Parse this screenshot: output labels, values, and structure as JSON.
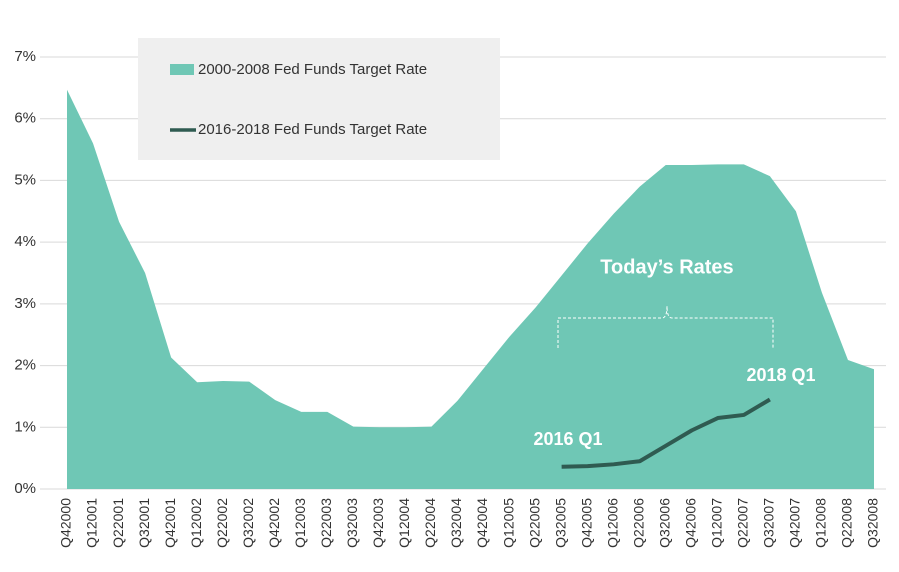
{
  "chart_data": {
    "type": "area_line",
    "categories": [
      "Q42000",
      "Q12001",
      "Q22001",
      "Q32001",
      "Q42001",
      "Q12002",
      "Q22002",
      "Q32002",
      "Q42002",
      "Q12003",
      "Q22003",
      "Q32003",
      "Q42003",
      "Q12004",
      "Q22004",
      "Q32004",
      "Q42004",
      "Q12005",
      "Q22005",
      "Q32005",
      "Q42005",
      "Q12006",
      "Q22006",
      "Q32006",
      "Q42006",
      "Q12007",
      "Q22007",
      "Q32007",
      "Q42007",
      "Q12008",
      "Q22008",
      "Q32008"
    ],
    "series": [
      {
        "name": "2000-2008 Fed Funds Target Rate",
        "color": "#6fc7b5",
        "kind": "area",
        "values": [
          6.47,
          5.6,
          4.33,
          3.5,
          2.13,
          1.73,
          1.75,
          1.74,
          1.44,
          1.25,
          1.25,
          1.01,
          1.0,
          1.0,
          1.01,
          1.43,
          1.95,
          2.47,
          2.94,
          3.46,
          3.98,
          4.46,
          4.9,
          5.25,
          5.25,
          5.26,
          5.26,
          5.07,
          4.5,
          3.18,
          2.09,
          1.94
        ]
      },
      {
        "name": "2016-2018 Fed Funds Target Rate",
        "color": "#2f5b51",
        "kind": "line",
        "values": [
          null,
          null,
          null,
          null,
          null,
          null,
          null,
          null,
          null,
          null,
          null,
          null,
          null,
          null,
          null,
          null,
          null,
          null,
          null,
          0.36,
          0.37,
          0.4,
          0.45,
          0.7,
          0.95,
          1.15,
          1.2,
          1.45,
          null,
          null,
          null,
          null
        ]
      }
    ],
    "ylim": [
      0,
      7
    ],
    "yticks": [
      {
        "value": 0,
        "label": "0%"
      },
      {
        "value": 1,
        "label": "1%"
      },
      {
        "value": 2,
        "label": "2%"
      },
      {
        "value": 3,
        "label": "3%"
      },
      {
        "value": 4,
        "label": "4%"
      },
      {
        "value": 5,
        "label": "5%"
      },
      {
        "value": 6,
        "label": "6%"
      },
      {
        "value": 7,
        "label": "7%"
      }
    ],
    "grid": true,
    "annotations": [
      "Today’s Rates",
      "2016 Q1",
      "2018 Q1"
    ]
  }
}
